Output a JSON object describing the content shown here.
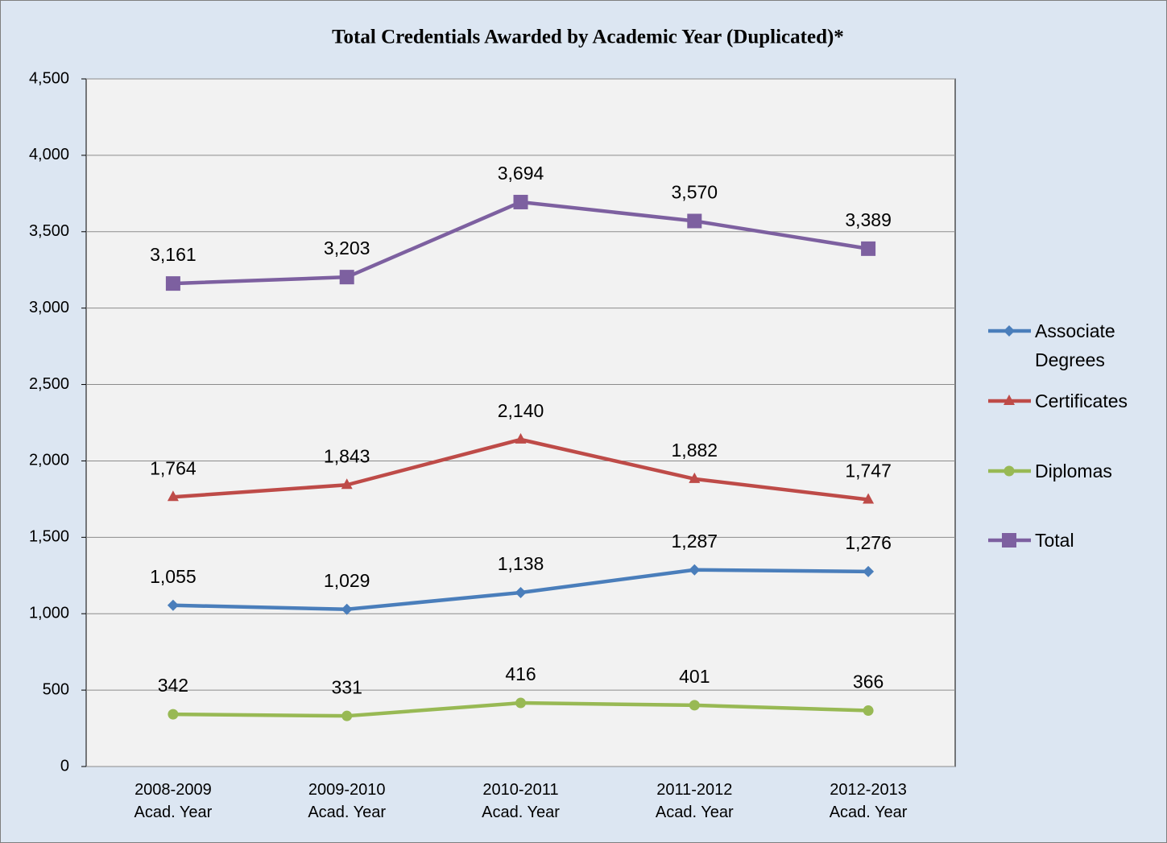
{
  "chart_data": {
    "type": "line",
    "title": "Total Credentials Awarded by Academic Year (Duplicated)*",
    "categories": [
      "2008-2009\nAcad. Year",
      "2009-2010\nAcad. Year",
      "2010-2011\nAcad. Year",
      "2011-2012\nAcad. Year",
      "2012-2013\nAcad. Year"
    ],
    "series": [
      {
        "name": "Associate Degrees",
        "color": "#4a7ebb",
        "marker": "diamond",
        "values": [
          1055,
          1029,
          1138,
          1287,
          1276
        ],
        "value_labels": [
          "1,055",
          "1,029",
          "1,138",
          "1,287",
          "1,276"
        ]
      },
      {
        "name": "Certificates",
        "color": "#be4b48",
        "marker": "triangle",
        "values": [
          1764,
          1843,
          2140,
          1882,
          1747
        ],
        "value_labels": [
          "1,764",
          "1,843",
          "2,140",
          "1,882",
          "1,747"
        ]
      },
      {
        "name": "Diplomas",
        "color": "#98b954",
        "marker": "circle",
        "values": [
          342,
          331,
          416,
          401,
          366
        ],
        "value_labels": [
          "342",
          "331",
          "416",
          "401",
          "366"
        ]
      },
      {
        "name": "Total",
        "color": "#7d60a0",
        "marker": "square",
        "values": [
          3161,
          3203,
          3694,
          3570,
          3389
        ],
        "value_labels": [
          "3,161",
          "3,203",
          "3,694",
          "3,570",
          "3,389"
        ]
      }
    ],
    "ylim": [
      0,
      4500
    ],
    "yticks": [
      0,
      500,
      {
        "value": 1000,
        "label": "1,000"
      },
      {
        "value": 1500,
        "label": "1,500"
      },
      {
        "value": 2000,
        "label": "2,000"
      },
      {
        "value": 2500,
        "label": "2,500"
      },
      {
        "value": 3000,
        "label": "3,000"
      },
      {
        "value": 3500,
        "label": "3,500"
      },
      {
        "value": 4000,
        "label": "4,000"
      },
      {
        "value": 4500,
        "label": "4,500"
      }
    ],
    "grid": true,
    "legend": "right"
  }
}
